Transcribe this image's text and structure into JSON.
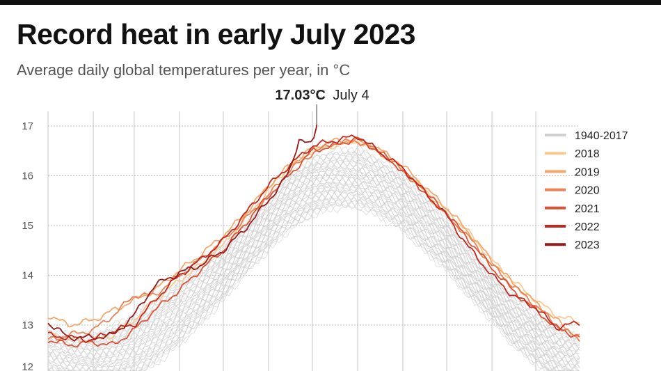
{
  "title": "Record heat in early July 2023",
  "subtitle": "Average daily global temperatures per year, in °C",
  "chart_data": {
    "type": "line",
    "title": "Record heat in early July 2023",
    "subtitle": "Average daily global temperatures per year, in °C",
    "xlabel": "",
    "ylabel": "",
    "x_range": [
      "01-01",
      "12-31"
    ],
    "ylim": [
      12,
      17.3
    ],
    "yticks": [
      17,
      16,
      15,
      14,
      13,
      12
    ],
    "grid": {
      "horizontal": "dashed",
      "vertical": "monthly"
    },
    "legend_position": "right",
    "annotation": {
      "value_label": "17.03°C",
      "date_label": "July 4",
      "x": "07-04",
      "y": 17.03
    },
    "x": [
      "01-01",
      "01-15",
      "02-01",
      "02-15",
      "03-01",
      "03-15",
      "04-01",
      "04-15",
      "05-01",
      "05-15",
      "06-01",
      "06-15",
      "07-01",
      "07-15",
      "08-01",
      "08-15",
      "09-01",
      "09-15",
      "10-01",
      "10-15",
      "11-01",
      "11-15",
      "12-01",
      "12-15",
      "12-31"
    ],
    "background_band": {
      "name": "1940-2017",
      "color": "#cfcfcf",
      "min": [
        11.7,
        11.6,
        11.6,
        11.7,
        11.9,
        12.2,
        12.6,
        13.0,
        13.5,
        14.0,
        14.5,
        14.9,
        15.2,
        15.35,
        15.35,
        15.2,
        14.9,
        14.5,
        14.1,
        13.6,
        13.1,
        12.6,
        12.2,
        11.9,
        11.7
      ],
      "max": [
        12.9,
        12.8,
        12.8,
        13.0,
        13.2,
        13.5,
        13.9,
        14.2,
        14.6,
        15.0,
        15.6,
        16.0,
        16.35,
        16.5,
        16.55,
        16.35,
        16.0,
        15.6,
        15.1,
        14.6,
        14.0,
        13.6,
        13.2,
        12.9,
        12.8
      ]
    },
    "series": [
      {
        "name": "2018",
        "color": "#f9c98f",
        "values": [
          12.85,
          12.7,
          12.7,
          12.8,
          13.1,
          13.5,
          13.9,
          14.2,
          14.6,
          15.1,
          15.7,
          16.2,
          16.5,
          16.6,
          16.7,
          16.5,
          16.15,
          15.75,
          15.3,
          14.9,
          14.3,
          13.9,
          13.5,
          13.2,
          13.05
        ]
      },
      {
        "name": "2019",
        "color": "#f5a66a",
        "values": [
          13.2,
          13.0,
          13.1,
          13.3,
          13.5,
          13.7,
          14.1,
          14.4,
          14.8,
          15.2,
          15.8,
          16.2,
          16.55,
          16.7,
          16.7,
          16.55,
          16.2,
          15.8,
          15.35,
          14.9,
          14.3,
          13.85,
          13.45,
          13.1,
          12.75
        ]
      },
      {
        "name": "2020",
        "color": "#ec8052",
        "values": [
          12.7,
          12.8,
          12.9,
          13.2,
          13.6,
          13.6,
          14.0,
          14.3,
          14.7,
          15.1,
          15.6,
          16.1,
          16.45,
          16.65,
          16.7,
          16.5,
          16.1,
          15.7,
          15.2,
          14.8,
          14.2,
          13.8,
          13.4,
          13.0,
          12.7
        ]
      },
      {
        "name": "2021",
        "color": "#dd5133",
        "values": [
          12.7,
          12.6,
          12.65,
          12.6,
          12.9,
          13.3,
          13.7,
          14.1,
          14.5,
          15.0,
          15.6,
          16.0,
          16.5,
          16.6,
          16.75,
          16.5,
          16.1,
          15.7,
          15.25,
          14.75,
          14.15,
          13.7,
          13.3,
          12.95,
          12.75
        ]
      },
      {
        "name": "2022",
        "color": "#c0271f",
        "values": [
          12.8,
          12.75,
          12.7,
          12.9,
          13.0,
          13.5,
          14.0,
          14.3,
          14.7,
          15.2,
          15.8,
          16.2,
          16.6,
          16.7,
          16.8,
          16.5,
          16.15,
          15.7,
          15.2,
          14.6,
          14.0,
          13.6,
          13.35,
          12.95,
          13.05
        ]
      },
      {
        "name": "2023",
        "color": "#951b1b",
        "x": [
          "01-01",
          "01-15",
          "02-01",
          "02-15",
          "03-01",
          "03-15",
          "04-01",
          "04-15",
          "05-01",
          "05-15",
          "06-01",
          "06-15",
          "06-22",
          "07-01",
          "07-04"
        ],
        "values": [
          13.05,
          12.75,
          12.75,
          12.8,
          13.2,
          13.8,
          14.05,
          14.2,
          14.5,
          14.9,
          15.5,
          16.05,
          16.75,
          16.6,
          17.03
        ]
      }
    ]
  }
}
